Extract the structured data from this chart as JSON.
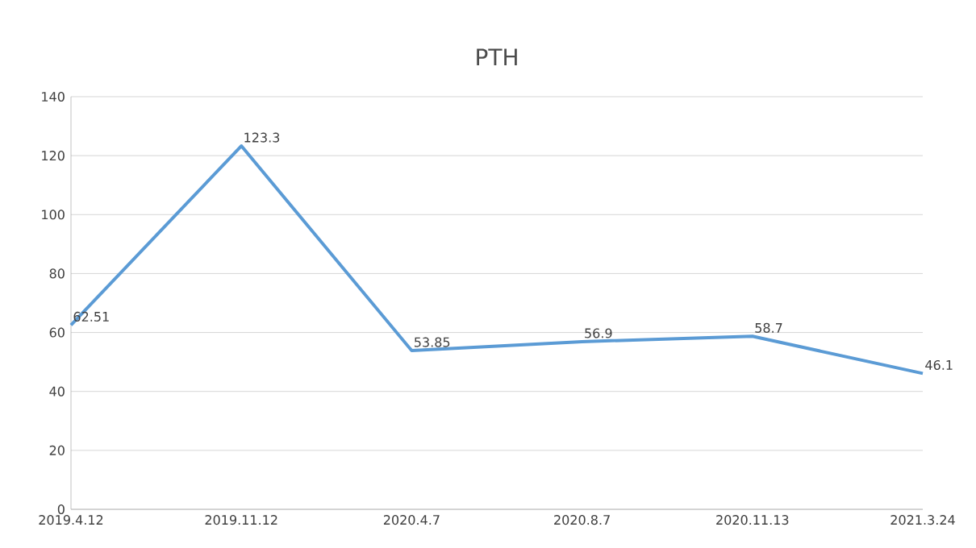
{
  "chart_data": {
    "type": "line",
    "title": "PTH",
    "categories": [
      "2019.4.12",
      "2019.11.12",
      "2020.4.7",
      "2020.8.7",
      "2020.11.13",
      "2021.3.24"
    ],
    "values": [
      62.51,
      123.3,
      53.85,
      56.9,
      58.7,
      46.1
    ],
    "color": "#5b9bd5",
    "ylim": [
      0,
      140
    ],
    "yticks": [
      0,
      20,
      40,
      60,
      80,
      100,
      120,
      140
    ],
    "grid": "y",
    "data_labels": true,
    "marker": "none",
    "line_style": "solid"
  }
}
